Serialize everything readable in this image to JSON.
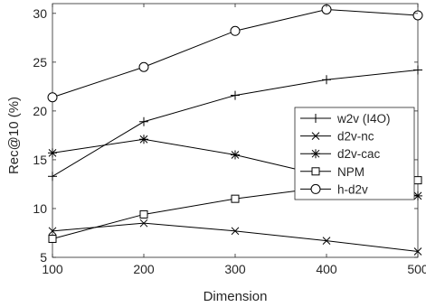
{
  "chart_data": {
    "type": "line",
    "xlabel": "Dimension",
    "ylabel": "Rec@10 (%)",
    "x": [
      100,
      200,
      300,
      400,
      500
    ],
    "xlim": [
      100,
      500
    ],
    "ylim": [
      5,
      31
    ],
    "xticks": [
      100,
      200,
      300,
      400,
      500
    ],
    "yticks": [
      5,
      10,
      15,
      20,
      25,
      30
    ],
    "grid": false,
    "legend_position": "right",
    "series": [
      {
        "name": "w2v (I4O)",
        "marker": "plus",
        "values": [
          13.3,
          18.9,
          21.6,
          23.2,
          24.2
        ]
      },
      {
        "name": "d2v-nc",
        "marker": "x",
        "values": [
          7.7,
          8.5,
          7.7,
          6.7,
          5.6
        ]
      },
      {
        "name": "d2v-cac",
        "marker": "asterisk",
        "values": [
          15.7,
          17.1,
          15.5,
          13.3,
          11.3
        ]
      },
      {
        "name": "NPM",
        "marker": "square",
        "values": [
          6.9,
          9.4,
          11.0,
          12.2,
          12.9
        ]
      },
      {
        "name": "h-d2v",
        "marker": "circle",
        "values": [
          21.4,
          24.5,
          28.2,
          30.4,
          29.8
        ]
      }
    ],
    "line_color": "#000000"
  }
}
